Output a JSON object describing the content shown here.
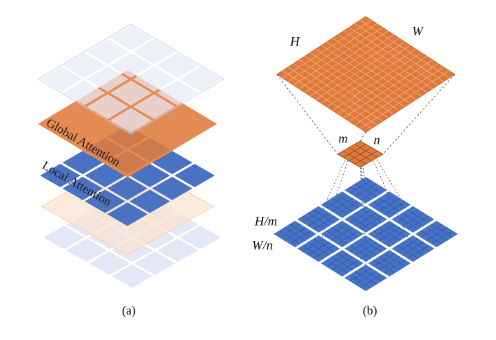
{
  "panel_a": {
    "layer_labels": [
      "Global Attention",
      "Local Attention"
    ],
    "caption": "(a)"
  },
  "panel_b": {
    "feature_map_labels": {
      "height": "H",
      "width": "W"
    },
    "window_labels": {
      "height": "m",
      "width": "n"
    },
    "grid_labels": {
      "height": "H/m",
      "width": "W/n"
    },
    "caption": "(b)"
  }
}
